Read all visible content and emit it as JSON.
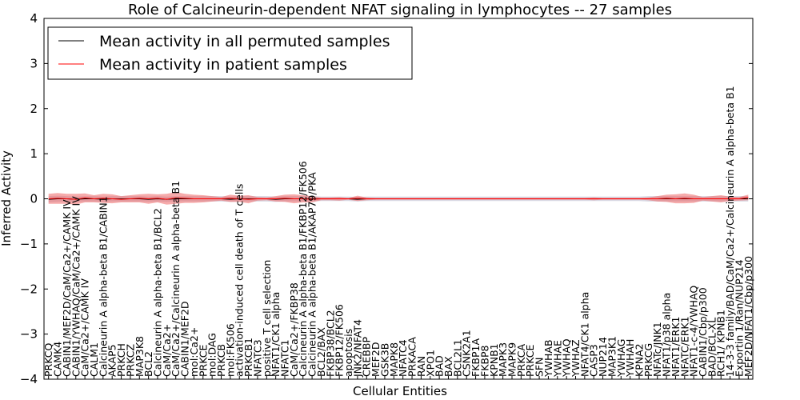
{
  "chart_data": {
    "type": "line",
    "title": "Role of Calcineurin-dependent NFAT signaling in lymphocytes -- 27 samples",
    "xlabel": "Cellular Entities",
    "ylabel": "Inferred Activity",
    "ylim": [
      -4,
      4
    ],
    "yticks": [
      -4,
      -3,
      -2,
      -1,
      0,
      1,
      2,
      3,
      4
    ],
    "ytick_labels": [
      "−4",
      "−3",
      "−2",
      "−1",
      "0",
      "1",
      "2",
      "3",
      "4"
    ],
    "legend": {
      "placement": "top-left",
      "entries": [
        {
          "label": "Mean activity in all permuted samples",
          "color": "#000000"
        },
        {
          "label": "Mean activity in patient samples",
          "color": "#ff0000"
        }
      ]
    },
    "categories": [
      "PRKCQ",
      "CAMK4",
      "CABIN1/MEF2D/CaM/Ca2+/CAMK IV",
      "CABIN1/YWHAQ/CaM/Ca2+/CAMK IV",
      "CaM/Ca2+/CAMK IV",
      "CALM1",
      "Calcineurin A alpha-beta B1/CABIN1",
      "AKAP5",
      "PRKCH",
      "PRKCZ",
      "MAP3K8",
      "BCL2",
      "Calcineurin A alpha-beta B1/BCL2",
      "CaM/Ca2+",
      "CaM/Ca2+/Calcineurin A alpha-beta B1",
      "CABIN1/MEF2D",
      "mol:Ca2+",
      "PRKCE",
      "mol:DAG",
      "PRKCB",
      "mol:FK506",
      "activation-induced cell death of T cells",
      "PRKCB1",
      "NFATC3",
      "positive T cell selection",
      "NFAT1/CK1 alpha",
      "NFATC1",
      "CaM/Ca2+/FKBP38",
      "Calcineurin A alpha-beta B1/FKBP12/FK506",
      "Calcineurin A alpha-beta B1/AKAP79/PKA",
      "BCL2/BAX",
      "FKBP38/BCL2",
      "FKBP12/FK506",
      "apoptosis",
      "JNK2/NFAT4",
      "CREBBP",
      "MEF2D",
      "GSK3B",
      "MAPK8",
      "NFATC4",
      "PRKACA",
      "RAN",
      "XPO1",
      "BAD",
      "BAX",
      "BCL2L1",
      "CSNK2A1",
      "FKBP1A",
      "FKBP8",
      "KPNB1",
      "MAPK3",
      "MAPK9",
      "PRKCA",
      "PRKCE",
      "SFN",
      "YWHAB",
      "YWHAE",
      "YWHAQ",
      "YWHAZ",
      "NFAT4/CK1 alpha",
      "CASP3",
      "NUP214",
      "MAP3K1",
      "YWHAG",
      "YWHAH",
      "KPNA2",
      "PRKCG",
      "NFATc/JNK1",
      "NFAT1/p38 alpha",
      "NFAT1/ERK1",
      "NFATC/ERK1",
      "NFAT1-c-4/YWHAQ",
      "CABIN1/Cbp/p300",
      "BAD/BCL-XL",
      "RCH1/ KPNB1",
      "14-3-3 family/BAD/CaM/Ca2+/Calcineurin A alpha-beta B1",
      "Exportin 1/Ran/NUP214",
      "MEF2D/NFAT1/Cbp/p300"
    ],
    "series": [
      {
        "name": "Mean activity in all permuted samples",
        "color": "#000000",
        "values": [
          -0.01,
          0.0,
          0.0,
          -0.01,
          0.0,
          0.0,
          -0.01,
          0.0,
          0.0,
          0.0,
          0.0,
          -0.01,
          0.0,
          -0.01,
          0.0,
          0.0,
          0.0,
          0.0,
          0.0,
          0.0,
          -0.01,
          0.0,
          0.0,
          0.0,
          0.0,
          -0.01,
          0.0,
          0.0,
          0.0,
          0.0,
          0.0,
          0.0,
          0.0,
          0.0,
          -0.01,
          0.0,
          0.0,
          0.0,
          0.0,
          0.0,
          0.0,
          0.0,
          0.0,
          0.0,
          0.0,
          0.0,
          0.0,
          0.0,
          0.0,
          0.0,
          0.0,
          0.0,
          0.0,
          0.0,
          0.0,
          0.0,
          0.0,
          0.0,
          0.0,
          0.0,
          0.0,
          0.0,
          0.0,
          0.0,
          0.0,
          0.0,
          0.0,
          0.0,
          0.0,
          0.0,
          0.0,
          0.0,
          0.0,
          0.0,
          0.0,
          0.0,
          0.0,
          0.0
        ],
        "spread": [
          0.07,
          0.07,
          0.06,
          0.06,
          0.06,
          0.06,
          0.06,
          0.06,
          0.06,
          0.06,
          0.06,
          0.06,
          0.06,
          0.06,
          0.06,
          0.06,
          0.06,
          0.06,
          0.06,
          0.06,
          0.06,
          0.06,
          0.06,
          0.06,
          0.06,
          0.06,
          0.06,
          0.06,
          0.06,
          0.06,
          0.05,
          0.05,
          0.05,
          0.05,
          0.05,
          0.05,
          0.05,
          0.05,
          0.05,
          0.05,
          0.05,
          0.05,
          0.05,
          0.05,
          0.05,
          0.05,
          0.05,
          0.05,
          0.05,
          0.05,
          0.05,
          0.05,
          0.05,
          0.05,
          0.05,
          0.05,
          0.05,
          0.05,
          0.05,
          0.05,
          0.05,
          0.05,
          0.05,
          0.05,
          0.05,
          0.05,
          0.06,
          0.06,
          0.06,
          0.06,
          0.06,
          0.06,
          0.06,
          0.06,
          0.06,
          0.06,
          0.06,
          0.06
        ]
      },
      {
        "name": "Mean activity in patient samples",
        "color": "#ff0000",
        "values": [
          0.0,
          0.01,
          0.0,
          -0.01,
          0.02,
          0.0,
          0.01,
          0.0,
          -0.01,
          0.0,
          0.01,
          0.0,
          0.01,
          -0.01,
          0.02,
          0.01,
          0.0,
          0.0,
          0.0,
          0.0,
          0.01,
          0.0,
          -0.01,
          0.0,
          0.0,
          0.0,
          0.01,
          0.0,
          0.0,
          -0.01,
          0.0,
          0.0,
          0.0,
          0.0,
          0.01,
          0.0,
          0.0,
          0.0,
          0.0,
          0.0,
          0.0,
          0.0,
          0.0,
          0.0,
          0.0,
          0.0,
          0.0,
          0.0,
          0.0,
          0.0,
          0.0,
          0.0,
          0.0,
          0.0,
          0.0,
          0.0,
          0.0,
          0.0,
          0.0,
          0.0,
          0.0,
          0.0,
          0.0,
          0.0,
          0.0,
          0.0,
          0.0,
          0.0,
          0.01,
          0.0,
          0.01,
          0.0,
          0.0,
          0.0,
          0.0,
          0.0,
          0.0,
          0.03
        ],
        "spread": [
          0.11,
          0.12,
          0.11,
          0.12,
          0.1,
          0.08,
          0.1,
          0.1,
          0.07,
          0.08,
          0.09,
          0.11,
          0.09,
          0.12,
          0.13,
          0.1,
          0.09,
          0.08,
          0.06,
          0.04,
          0.08,
          0.07,
          0.09,
          0.04,
          0.03,
          0.06,
          0.08,
          0.1,
          0.08,
          0.07,
          0.03,
          0.03,
          0.04,
          0.02,
          0.06,
          0.03,
          0.02,
          0.02,
          0.02,
          0.02,
          0.02,
          0.02,
          0.02,
          0.02,
          0.02,
          0.02,
          0.02,
          0.02,
          0.02,
          0.02,
          0.02,
          0.02,
          0.02,
          0.02,
          0.02,
          0.02,
          0.02,
          0.02,
          0.02,
          0.02,
          0.03,
          0.02,
          0.02,
          0.02,
          0.02,
          0.02,
          0.03,
          0.06,
          0.08,
          0.1,
          0.11,
          0.09,
          0.04,
          0.06,
          0.08,
          0.05,
          0.04,
          0.06
        ]
      }
    ]
  }
}
